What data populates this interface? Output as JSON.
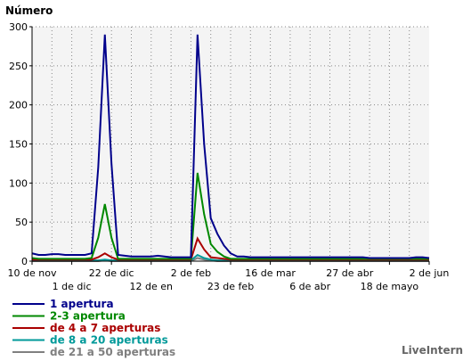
{
  "chart_data": {
    "type": "line",
    "title": "Número",
    "ylim": [
      0,
      300
    ],
    "yticks": [
      0,
      50,
      100,
      150,
      200,
      250,
      300
    ],
    "xticks_row1": [
      {
        "i": 0,
        "label": "10 de nov"
      },
      {
        "i": 12,
        "label": "22 de dic"
      },
      {
        "i": 24,
        "label": "2 de feb"
      },
      {
        "i": 36,
        "label": "16 de mar"
      },
      {
        "i": 48,
        "label": "27 de abr"
      },
      {
        "i": 60,
        "label": "2 de jun"
      }
    ],
    "xticks_row2": [
      {
        "i": 6,
        "label": "1 de dic"
      },
      {
        "i": 18,
        "label": "12 de en"
      },
      {
        "i": 30,
        "label": "23 de feb"
      },
      {
        "i": 42,
        "label": "6 de abr"
      },
      {
        "i": 54,
        "label": "18 de mayo"
      }
    ],
    "n_points": 61,
    "grid": true,
    "legend_position": "bottom-left",
    "series": [
      {
        "name": "1 apertura",
        "color": "#00008b",
        "values": [
          10,
          8,
          8,
          9,
          9,
          8,
          8,
          8,
          8,
          10,
          120,
          290,
          125,
          8,
          7,
          6,
          6,
          6,
          6,
          7,
          6,
          5,
          5,
          5,
          5,
          290,
          150,
          55,
          35,
          20,
          10,
          6,
          6,
          5,
          5,
          5,
          5,
          5,
          5,
          5,
          5,
          5,
          5,
          5,
          5,
          5,
          5,
          5,
          5,
          5,
          5,
          4,
          4,
          4,
          4,
          4,
          4,
          4,
          5,
          5,
          4
        ]
      },
      {
        "name": "2-3 apertura",
        "color": "#008800",
        "values": [
          4,
          3,
          3,
          3,
          3,
          3,
          3,
          3,
          3,
          4,
          30,
          73,
          30,
          3,
          3,
          3,
          3,
          3,
          3,
          3,
          3,
          3,
          3,
          3,
          3,
          113,
          60,
          22,
          12,
          6,
          3,
          3,
          3,
          3,
          3,
          3,
          3,
          3,
          3,
          3,
          3,
          3,
          3,
          3,
          3,
          3,
          3,
          3,
          3,
          3,
          3,
          3,
          3,
          3,
          3,
          3,
          3,
          3,
          3,
          3,
          3
        ]
      },
      {
        "name": "de 4 a 7 aperturas",
        "color": "#aa0000",
        "values": [
          2,
          2,
          2,
          2,
          2,
          2,
          2,
          2,
          2,
          2,
          5,
          10,
          5,
          2,
          2,
          2,
          2,
          2,
          2,
          2,
          2,
          2,
          2,
          2,
          2,
          29,
          15,
          5,
          4,
          3,
          2,
          2,
          2,
          2,
          2,
          2,
          2,
          2,
          2,
          2,
          2,
          2,
          2,
          2,
          2,
          2,
          2,
          2,
          2,
          2,
          2,
          2,
          2,
          2,
          2,
          2,
          2,
          2,
          2,
          2,
          2
        ]
      },
      {
        "name": "de 8 a 20 aperturas",
        "color": "#009999",
        "values": [
          1,
          1,
          1,
          1,
          1,
          1,
          1,
          1,
          1,
          1,
          1,
          2,
          1,
          1,
          1,
          1,
          1,
          1,
          1,
          1,
          1,
          1,
          1,
          1,
          1,
          8,
          4,
          2,
          1,
          1,
          1,
          1,
          1,
          1,
          1,
          1,
          1,
          1,
          1,
          1,
          1,
          1,
          1,
          1,
          1,
          1,
          1,
          1,
          1,
          1,
          1,
          1,
          1,
          1,
          1,
          1,
          1,
          1,
          1,
          1,
          1
        ]
      },
      {
        "name": "de 21 a 50 aperturas",
        "color": "#808080",
        "values": [
          0,
          0,
          0,
          0,
          0,
          0,
          0,
          0,
          0,
          0,
          0,
          1,
          0,
          0,
          0,
          0,
          0,
          0,
          0,
          0,
          0,
          0,
          0,
          0,
          0,
          4,
          2,
          1,
          0,
          0,
          0,
          0,
          0,
          0,
          0,
          0,
          0,
          0,
          0,
          0,
          0,
          0,
          0,
          0,
          0,
          0,
          0,
          0,
          0,
          0,
          0,
          0,
          0,
          0,
          0,
          0,
          0,
          0,
          0,
          0,
          0
        ]
      }
    ],
    "brand": "LiveInternet"
  }
}
